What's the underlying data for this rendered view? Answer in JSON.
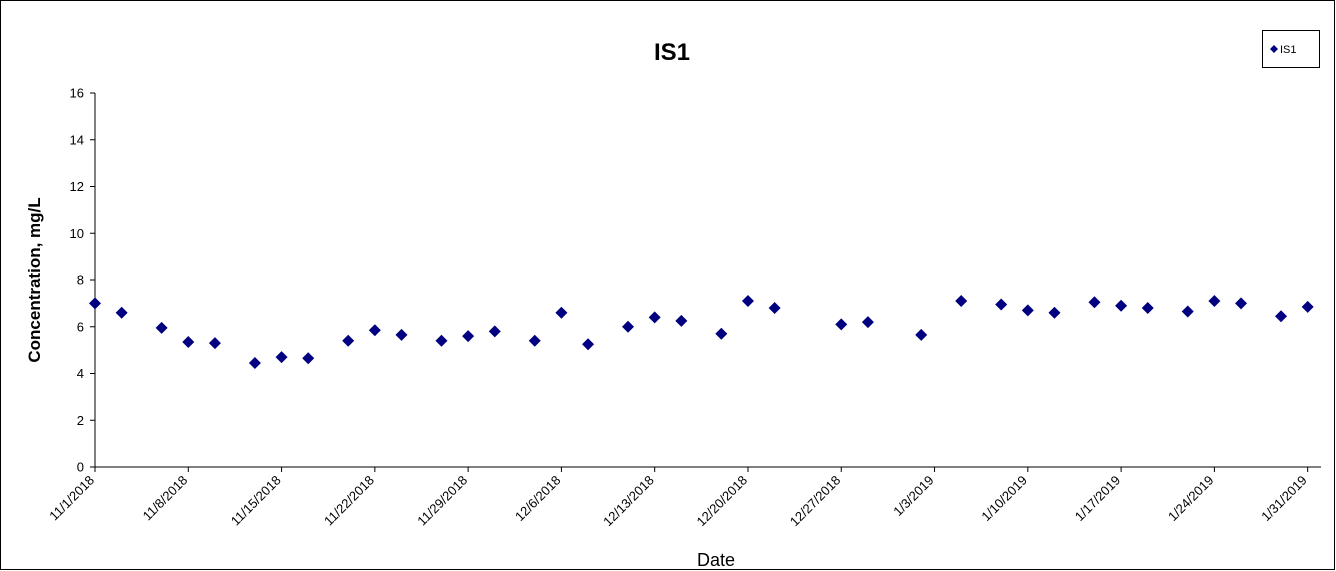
{
  "chart_data": {
    "type": "scatter",
    "title": "IS1",
    "xlabel": "Date",
    "ylabel": "Concentration, mg/L",
    "ylim": [
      0,
      16
    ],
    "yticks": [
      0,
      2,
      4,
      6,
      8,
      10,
      12,
      14,
      16
    ],
    "xlim": [
      "2018-11-01",
      "2019-02-01"
    ],
    "xtick_labels": [
      "11/1/2018",
      "11/8/2018",
      "11/15/2018",
      "11/22/2018",
      "11/29/2018",
      "12/6/2018",
      "12/13/2018",
      "12/20/2018",
      "12/27/2018",
      "1/3/2019",
      "1/10/2019",
      "1/17/2019",
      "1/24/2019",
      "1/31/2019"
    ],
    "grid": false,
    "legend_position": "top-right",
    "series": [
      {
        "name": "IS1",
        "color": "#000080",
        "marker": "diamond",
        "points": [
          {
            "x": "2018-11-01",
            "y": 7.0
          },
          {
            "x": "2018-11-03",
            "y": 6.6
          },
          {
            "x": "2018-11-06",
            "y": 5.95
          },
          {
            "x": "2018-11-08",
            "y": 5.35
          },
          {
            "x": "2018-11-10",
            "y": 5.3
          },
          {
            "x": "2018-11-13",
            "y": 4.45
          },
          {
            "x": "2018-11-15",
            "y": 4.7
          },
          {
            "x": "2018-11-17",
            "y": 4.65
          },
          {
            "x": "2018-11-20",
            "y": 5.4
          },
          {
            "x": "2018-11-22",
            "y": 5.85
          },
          {
            "x": "2018-11-24",
            "y": 5.65
          },
          {
            "x": "2018-11-27",
            "y": 5.4
          },
          {
            "x": "2018-11-29",
            "y": 5.6
          },
          {
            "x": "2018-12-01",
            "y": 5.8
          },
          {
            "x": "2018-12-04",
            "y": 5.4
          },
          {
            "x": "2018-12-06",
            "y": 6.6
          },
          {
            "x": "2018-12-08",
            "y": 5.25
          },
          {
            "x": "2018-12-11",
            "y": 6.0
          },
          {
            "x": "2018-12-13",
            "y": 6.4
          },
          {
            "x": "2018-12-15",
            "y": 6.25
          },
          {
            "x": "2018-12-18",
            "y": 5.7
          },
          {
            "x": "2018-12-20",
            "y": 7.1
          },
          {
            "x": "2018-12-22",
            "y": 6.8
          },
          {
            "x": "2018-12-27",
            "y": 6.1
          },
          {
            "x": "2018-12-29",
            "y": 6.2
          },
          {
            "x": "2019-01-02",
            "y": 5.65
          },
          {
            "x": "2019-01-05",
            "y": 7.1
          },
          {
            "x": "2019-01-08",
            "y": 6.95
          },
          {
            "x": "2019-01-10",
            "y": 6.7
          },
          {
            "x": "2019-01-12",
            "y": 6.6
          },
          {
            "x": "2019-01-15",
            "y": 7.05
          },
          {
            "x": "2019-01-17",
            "y": 6.9
          },
          {
            "x": "2019-01-19",
            "y": 6.8
          },
          {
            "x": "2019-01-22",
            "y": 6.65
          },
          {
            "x": "2019-01-24",
            "y": 7.1
          },
          {
            "x": "2019-01-26",
            "y": 7.0
          },
          {
            "x": "2019-01-29",
            "y": 6.45
          },
          {
            "x": "2019-01-31",
            "y": 6.85
          }
        ]
      }
    ]
  }
}
